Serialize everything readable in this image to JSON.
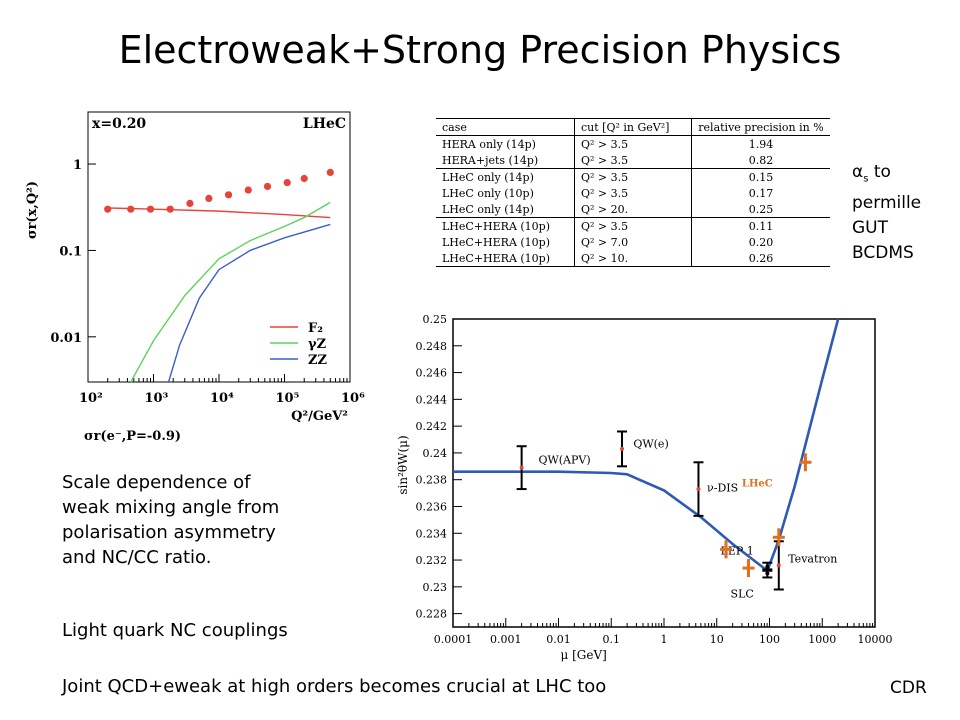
{
  "title": "Electroweak+Strong Precision Physics",
  "left_text": {
    "para1": [
      "Scale dependence of",
      "weak mixing angle from",
      "polarisation asymmetry",
      "and NC/CC ratio."
    ],
    "para2": "Light quark NC couplings",
    "para3": "Joint QCD+eweak at high orders becomes crucial at LHC too"
  },
  "side_notes": {
    "alpha_s": "α",
    "sub": "s",
    "to": " to",
    "lines": [
      "permille",
      "GUT",
      "BCDMS"
    ]
  },
  "footer": "CDR",
  "table": {
    "headers": [
      "case",
      "cut [Q² in GeV²]",
      "relative precision in %"
    ],
    "groups": [
      [
        [
          "HERA only (14p)",
          "Q² > 3.5",
          "1.94"
        ],
        [
          "HERA+jets (14p)",
          "Q² > 3.5",
          "0.82"
        ]
      ],
      [
        [
          "LHeC only (14p)",
          "Q² > 3.5",
          "0.15"
        ],
        [
          "LHeC only (10p)",
          "Q² > 3.5",
          "0.17"
        ],
        [
          "LHeC only (14p)",
          "Q² > 20.",
          "0.25"
        ]
      ],
      [
        [
          "LHeC+HERA (10p)",
          "Q² > 3.5",
          "0.11"
        ],
        [
          "LHeC+HERA (10p)",
          "Q² > 7.0",
          "0.20"
        ],
        [
          "LHeC+HERA (10p)",
          "Q² > 10.",
          "0.26"
        ]
      ]
    ]
  },
  "chart_data": [
    {
      "type": "line",
      "title_left": "x=0.20",
      "title_right": "LHeC",
      "ylabel": "σr(x,Q²)",
      "xlabel": "Q²/GeV²",
      "sub_label": "σr(e⁻,P=-0.9)",
      "x_scale": "log",
      "y_scale": "log",
      "xlim": [
        100,
        1000000
      ],
      "ylim": [
        0.003,
        4
      ],
      "x_ticks": [
        "10²",
        "10³",
        "10⁴",
        "10⁵",
        "10⁶"
      ],
      "y_ticks": [
        "1",
        "0.1",
        "0.01"
      ],
      "points": {
        "x": [
          200,
          450,
          900,
          1800,
          3600,
          7000,
          14000,
          28000,
          55000,
          110000,
          200000,
          500000
        ],
        "y": [
          0.3,
          0.3,
          0.3,
          0.3,
          0.35,
          0.4,
          0.44,
          0.5,
          0.55,
          0.61,
          0.68,
          0.8
        ]
      },
      "series": [
        {
          "name": "F₂",
          "color": "#e8423a",
          "x": [
            200,
            1000,
            10000,
            100000,
            500000
          ],
          "y": [
            0.31,
            0.3,
            0.285,
            0.26,
            0.24
          ]
        },
        {
          "name": "γZ",
          "color": "#5fd35a",
          "x": [
            450,
            1000,
            3000,
            10000,
            30000,
            100000,
            200000,
            500000
          ],
          "y": [
            0.003,
            0.009,
            0.03,
            0.08,
            0.13,
            0.19,
            0.24,
            0.36
          ]
        },
        {
          "name": "ZZ",
          "color": "#3c5ec8",
          "x": [
            1700,
            2500,
            5000,
            10000,
            30000,
            100000,
            500000
          ],
          "y": [
            0.003,
            0.008,
            0.028,
            0.06,
            0.1,
            0.14,
            0.2
          ]
        }
      ]
    },
    {
      "type": "line",
      "xlabel": "μ [GeV]",
      "ylabel": "sin²θW(μ)",
      "x_scale": "log",
      "xlim": [
        0.0001,
        10000
      ],
      "ylim": [
        0.227,
        0.25
      ],
      "x_ticks": [
        "0.0001",
        "0.001",
        "0.01",
        "0.1",
        "1",
        "10",
        "100",
        "1000",
        "10000"
      ],
      "y_ticks": [
        "0.25",
        "0.248",
        "0.246",
        "0.244",
        "0.242",
        "0.24",
        "0.238",
        "0.236",
        "0.234",
        "0.232",
        "0.23",
        "0.228"
      ],
      "curve": {
        "x": [
          0.0001,
          0.01,
          0.1,
          0.2,
          1,
          5,
          20,
          91,
          150,
          300,
          1000,
          10000
        ],
        "y": [
          0.2386,
          0.2386,
          0.2385,
          0.2384,
          0.2372,
          0.2352,
          0.2332,
          0.2312,
          0.2335,
          0.2375,
          0.2455,
          0.262
        ]
      },
      "measurements": [
        {
          "label": "QW(APV)",
          "x": 0.002,
          "y": 0.2389,
          "err": 0.0016,
          "color": "#e8423a"
        },
        {
          "label": "QW(e)",
          "x": 0.16,
          "y": 0.2403,
          "err": 0.0013,
          "color": "#e8423a"
        },
        {
          "label": "ν-DIS",
          "x": 4.5,
          "y": 0.2373,
          "err": 0.002,
          "color": "#e8423a"
        },
        {
          "label": "LEP 1",
          "x": 91,
          "y": 0.2315,
          "err": 0.0003,
          "color": "#000"
        },
        {
          "label": "SLC",
          "x": 91,
          "y": 0.231,
          "err": 0.0003,
          "color": "#000"
        },
        {
          "label": "Tevatron",
          "x": 150,
          "y": 0.2316,
          "err": 0.0018,
          "color": "#e8423a"
        }
      ],
      "lhec_label": "LHeC",
      "lhec_points": {
        "x": [
          15,
          40,
          150,
          480
        ],
        "y": [
          0.2328,
          0.2314,
          0.2337,
          0.2393
        ]
      }
    }
  ]
}
